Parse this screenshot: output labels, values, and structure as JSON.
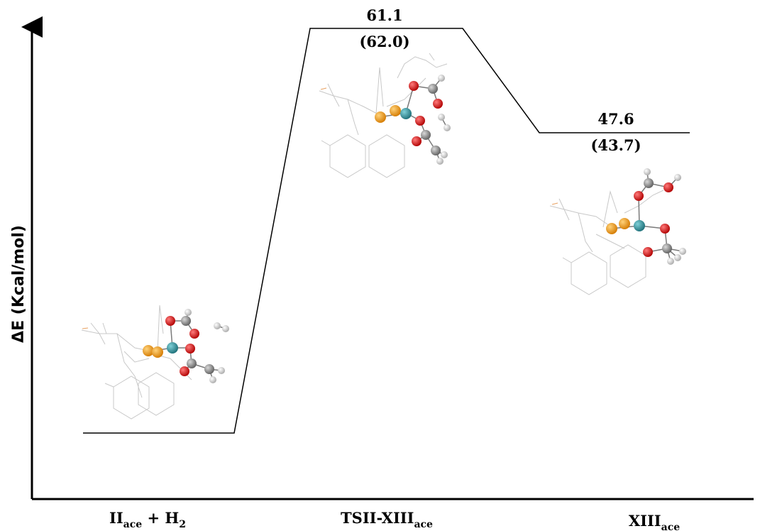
{
  "diagram": {
    "y_axis_label": "ΔE (Kcal/mol)",
    "states": [
      {
        "id": "reactant",
        "label_main": "II",
        "label_sub": "ace",
        "label_rest": " + H",
        "label_sub2": "2",
        "energy": null,
        "energy_paren": null
      },
      {
        "id": "ts",
        "label_main": "TSII-XIII",
        "label_sub": "ace",
        "label_rest": "",
        "label_sub2": "",
        "energy": "61.1",
        "energy_paren": "(62.0)"
      },
      {
        "id": "product",
        "label_main": "XIII",
        "label_sub": "ace",
        "label_rest": "",
        "label_sub2": "",
        "energy": "47.6",
        "energy_paren": "(43.7)"
      }
    ],
    "atom_colors": {
      "P": "#e8900f",
      "metal": "#2a8f99",
      "O": "#d41111",
      "C": "#8a8a8a",
      "H": "#ffffff",
      "wireframe": "#c8c8c8"
    }
  }
}
